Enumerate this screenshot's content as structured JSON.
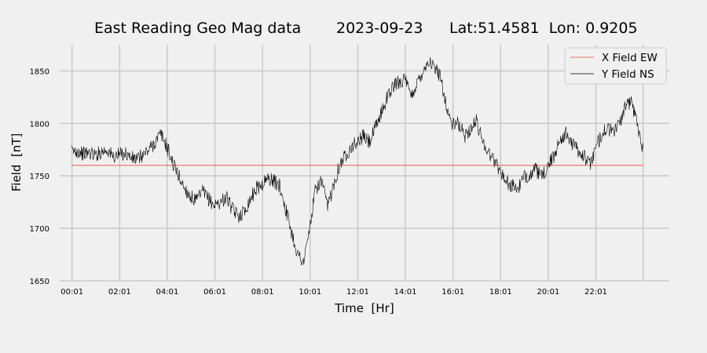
{
  "chart_data": {
    "type": "line",
    "title_parts": [
      "East Reading Geo Mag data",
      "2023-09-23",
      "Lat:51.4581  Lon: 0.9205"
    ],
    "xlabel": "Time  [Hr]",
    "ylabel": "Field  [nT]",
    "x_range_hours": [
      0,
      24
    ],
    "ylim": [
      1650,
      1875
    ],
    "x_ticks": [
      {
        "hour": 0.017,
        "label": "00:01"
      },
      {
        "hour": 2.017,
        "label": "02:01"
      },
      {
        "hour": 4.017,
        "label": "04:01"
      },
      {
        "hour": 6.017,
        "label": "06:01"
      },
      {
        "hour": 8.017,
        "label": "08:01"
      },
      {
        "hour": 10.017,
        "label": "10:01"
      },
      {
        "hour": 12.017,
        "label": "12:01"
      },
      {
        "hour": 14.017,
        "label": "14:01"
      },
      {
        "hour": 16.017,
        "label": "16:01"
      },
      {
        "hour": 18.017,
        "label": "18:01"
      },
      {
        "hour": 20.017,
        "label": "20:01"
      },
      {
        "hour": 22.017,
        "label": "22:01"
      }
    ],
    "y_ticks": [
      1650,
      1700,
      1750,
      1800,
      1850
    ],
    "grid": true,
    "legend_position": "top-right",
    "series": [
      {
        "name": "X Field EW",
        "color": "#e24a33",
        "hours": [
          0,
          24
        ],
        "values": [
          1760,
          1760
        ]
      },
      {
        "name": "Y Field NS",
        "color": "#000000",
        "hours": [
          0,
          0.25,
          0.5,
          0.75,
          1.0,
          1.25,
          1.5,
          1.75,
          2.0,
          2.25,
          2.5,
          2.75,
          3.0,
          3.25,
          3.5,
          3.75,
          4.0,
          4.25,
          4.5,
          4.75,
          5.0,
          5.25,
          5.5,
          5.75,
          6.0,
          6.25,
          6.5,
          6.75,
          7.0,
          7.25,
          7.5,
          7.75,
          8.0,
          8.25,
          8.5,
          8.75,
          9.0,
          9.25,
          9.5,
          9.75,
          10.0,
          10.25,
          10.5,
          10.75,
          11.0,
          11.25,
          11.5,
          11.75,
          12.0,
          12.25,
          12.5,
          12.75,
          13.0,
          13.25,
          13.5,
          13.75,
          14.0,
          14.25,
          14.5,
          14.75,
          15.0,
          15.25,
          15.5,
          15.75,
          16.0,
          16.25,
          16.5,
          16.75,
          17.0,
          17.25,
          17.5,
          17.75,
          18.0,
          18.25,
          18.5,
          18.75,
          19.0,
          19.25,
          19.5,
          19.75,
          20.0,
          20.25,
          20.5,
          20.75,
          21.0,
          21.25,
          21.5,
          21.75,
          22.0,
          22.25,
          22.5,
          22.75,
          23.0,
          23.25,
          23.5,
          23.75,
          24.0
        ],
        "values": [
          1773,
          1774,
          1771,
          1772,
          1770,
          1773,
          1775,
          1768,
          1770,
          1772,
          1767,
          1766,
          1770,
          1775,
          1782,
          1790,
          1778,
          1762,
          1750,
          1738,
          1730,
          1726,
          1735,
          1728,
          1722,
          1725,
          1730,
          1718,
          1712,
          1716,
          1728,
          1738,
          1742,
          1748,
          1745,
          1740,
          1718,
          1695,
          1675,
          1668,
          1700,
          1738,
          1745,
          1720,
          1742,
          1760,
          1770,
          1778,
          1782,
          1788,
          1782,
          1795,
          1810,
          1825,
          1835,
          1840,
          1842,
          1825,
          1838,
          1850,
          1860,
          1852,
          1845,
          1815,
          1798,
          1800,
          1788,
          1795,
          1802,
          1785,
          1772,
          1765,
          1755,
          1745,
          1740,
          1738,
          1748,
          1752,
          1756,
          1748,
          1760,
          1768,
          1785,
          1790,
          1782,
          1775,
          1770,
          1760,
          1775,
          1790,
          1795,
          1792,
          1800,
          1815,
          1822,
          1800,
          1776
        ]
      }
    ]
  }
}
